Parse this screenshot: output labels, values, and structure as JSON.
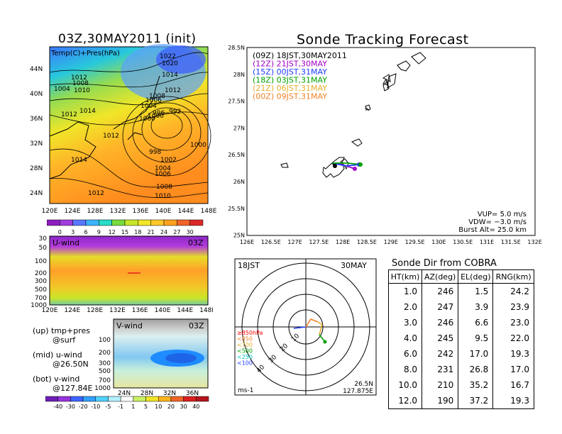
{
  "left_title": "03Z,30MAY2011 (init)",
  "right_title": "Sonde Tracking Forecast",
  "map_panel": {
    "label": "Temp(C)+Pres(hPa)",
    "y_ticks": [
      "44N",
      "40N",
      "36N",
      "32N",
      "28N",
      "24N"
    ],
    "x_ticks": [
      "120E",
      "124E",
      "128E",
      "132E",
      "136E",
      "140E",
      "144E",
      "148E"
    ],
    "isobar_labels": [
      "1022",
      "1020",
      "1014",
      "1012",
      "1008",
      "1004",
      "1010",
      "1012",
      "1008",
      "1006",
      "1004",
      "1012",
      "1014",
      "1000",
      "1000",
      "996",
      "992",
      "1012",
      "998",
      "1000",
      "1002",
      "1014",
      "1004",
      "1006",
      "1012",
      "1008",
      "1010"
    ]
  },
  "temp_colorbar": [
    "0",
    "3",
    "6",
    "9",
    "12",
    "15",
    "18",
    "21",
    "24",
    "27",
    "30"
  ],
  "uwind_panel": {
    "label": "U-wind",
    "time": "03Z",
    "y_ticks": [
      "30",
      "50",
      "100",
      "200",
      "300",
      "500",
      "700",
      "1000"
    ],
    "x_ticks": [
      "120E",
      "124E",
      "128E",
      "132E",
      "136E",
      "140E",
      "144E",
      "148E"
    ]
  },
  "vwind_panel": {
    "label": "V-wind",
    "time": "03Z",
    "y_ticks": [
      "100",
      "200",
      "300",
      "500",
      "700",
      "1000"
    ],
    "x_ticks": [
      "24N",
      "28N",
      "32N",
      "36N"
    ]
  },
  "wind_colorbar": [
    "-40",
    "-30",
    "-20",
    "-10",
    "-5",
    "-1",
    "1",
    "5",
    "10",
    "20",
    "30",
    "40"
  ],
  "legend_notes": [
    {
      "a": "(up) tmp+pres",
      "b": "@surf"
    },
    {
      "a": "(mid) u-wind",
      "b": "@26.50N"
    },
    {
      "a": "(bot) v-wind",
      "b": "@127.84E"
    }
  ],
  "track_legend": [
    {
      "t": "(09Z)  18JST,30MAY2011",
      "color": "#000000"
    },
    {
      "t": "(12Z)  21JST,30MAY",
      "color": "#a000c8"
    },
    {
      "t": "(15Z)  00JST,31MAY",
      "color": "#1e3cff"
    },
    {
      "t": "(18Z)  03JST,31MAY",
      "color": "#00a000"
    },
    {
      "t": "(21Z)  06JST,31MAY",
      "color": "#e6af2d"
    },
    {
      "t": "(00Z)  09JST,31MAY",
      "color": "#f08228"
    }
  ],
  "track_axes": {
    "y_ticks": [
      "28.5N",
      "28N",
      "27.5N",
      "27N",
      "26.5N",
      "26N",
      "25.5N",
      "25N"
    ],
    "x_ticks": [
      "126E",
      "126.5E",
      "127E",
      "127.5E",
      "128E",
      "128.5E",
      "129E",
      "129.5E",
      "130E",
      "130.5E",
      "131E",
      "131.5E",
      "132E"
    ]
  },
  "track_params": {
    "vup": "VUP=  5.0  m/s",
    "vdw": "VDW= −3.0  m/s",
    "burst": "Burst Alt=  25.0  km"
  },
  "polar": {
    "top_left": "18JST",
    "top_right": "30MAY",
    "bottom_left": "ms-1",
    "bottom_right_1": "26.5N",
    "bottom_right_2": "127.875E",
    "ring_labels": [
      "10",
      "20",
      "30",
      "40"
    ],
    "level_legend": [
      "≥850hPa",
      "<850",
      "<700",
      "<500",
      "<250",
      "<100"
    ],
    "level_colors": [
      "#ff0000",
      "#f08228",
      "#e6af2d",
      "#00a000",
      "#00c8c8",
      "#1e3cff"
    ]
  },
  "table_title": "Sonde Dir from COBRA",
  "chart_data": {
    "type": "table",
    "title": "Sonde Dir from COBRA",
    "columns": [
      "HT(km)",
      "AZ(deg)",
      "EL(deg)",
      "RNG(km)"
    ],
    "rows": [
      [
        "1.0",
        "246",
        "1.5",
        "24.2"
      ],
      [
        "2.0",
        "247",
        "3.9",
        "23.9"
      ],
      [
        "3.0",
        "246",
        "6.6",
        "23.0"
      ],
      [
        "4.0",
        "245",
        "9.5",
        "22.0"
      ],
      [
        "6.0",
        "242",
        "17.0",
        "19.3"
      ],
      [
        "8.0",
        "231",
        "26.8",
        "17.0"
      ],
      [
        "10.0",
        "210",
        "35.2",
        "16.7"
      ],
      [
        "12.0",
        "190",
        "37.2",
        "19.3"
      ]
    ]
  }
}
